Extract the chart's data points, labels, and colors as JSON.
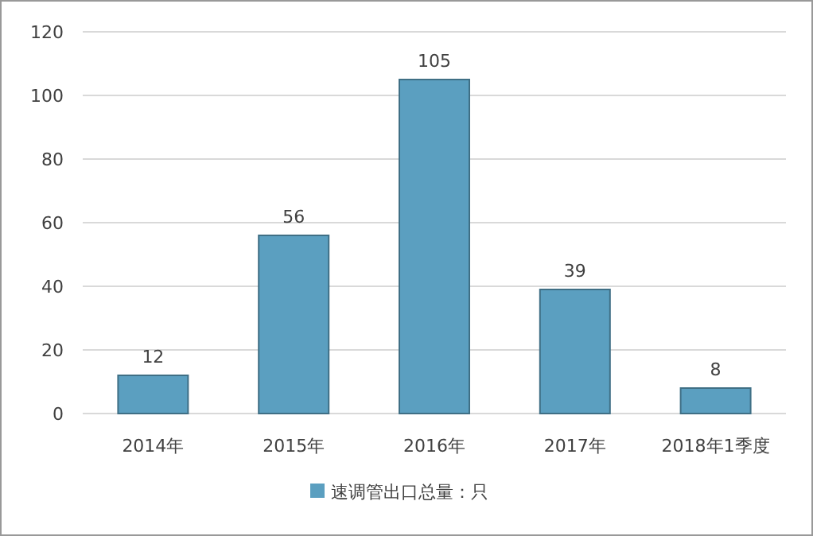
{
  "chart_data": {
    "type": "bar",
    "categories": [
      "2014年",
      "2015年",
      "2016年",
      "2017年",
      "2018年1季度"
    ],
    "series": [
      {
        "name": "速调管出口总量：只",
        "color": "#5b9fc0",
        "values": [
          12,
          56,
          105,
          39,
          8
        ]
      }
    ],
    "ylim": [
      0,
      120
    ],
    "yticks": [
      0,
      20,
      40,
      60,
      80,
      100,
      120
    ],
    "grid": "y",
    "data_labels": true,
    "legend": "bottom"
  }
}
